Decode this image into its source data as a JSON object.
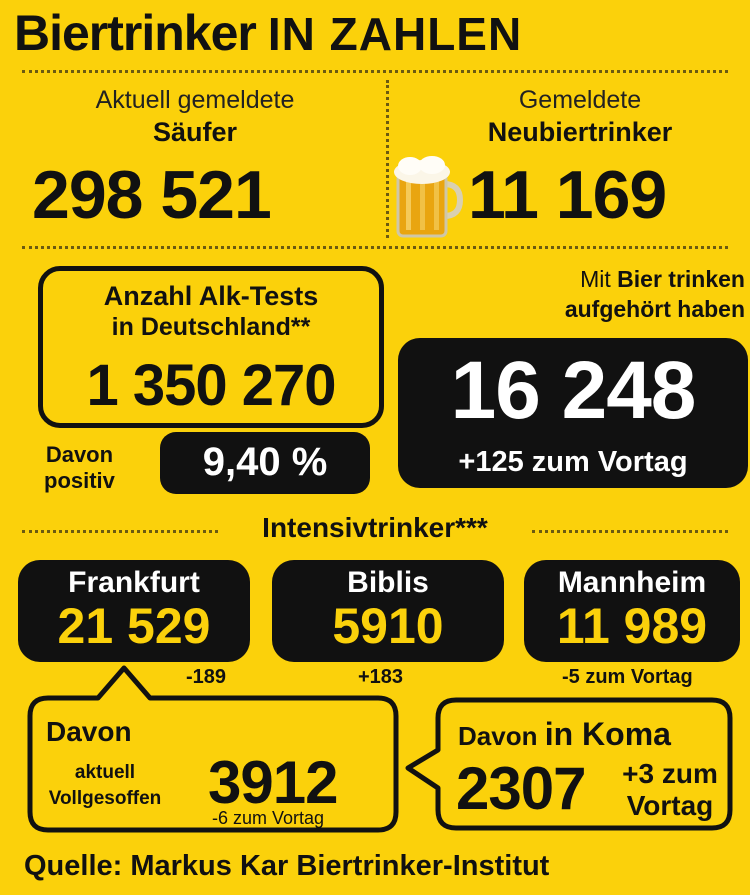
{
  "header": {
    "title_part1": "Biertrinker",
    "title_part2": "IN ZAHLEN"
  },
  "top_left": {
    "label_line1": "Aktuell gemeldete",
    "label_line2": "Säufer",
    "value": "298 521"
  },
  "top_right": {
    "label_line1": "Gemeldete",
    "label_line2": "Neubiertrinker",
    "value": "11 169"
  },
  "tests": {
    "label_line1": "Anzahl Alk-Tests",
    "label_line2": "in Deutschland**",
    "value": "1 350 270",
    "positive_label_line1": "Davon",
    "positive_label_line2": "positiv",
    "positive_value": "9,40 %"
  },
  "quit": {
    "label_prefix": "Mit",
    "label_bold1": "Bier trinken",
    "label_bold2": "aufgehört haben",
    "value": "16 248",
    "delta": "+125 zum Vortag"
  },
  "intensiv": {
    "heading": "Intensivtrinker***",
    "cities": [
      {
        "name": "Frankfurt",
        "value": "21 529",
        "delta": "-189"
      },
      {
        "name": "Biblis",
        "value": "5910",
        "delta": "+183"
      },
      {
        "name": "Mannheim",
        "value": "11 989",
        "delta": "-5 zum Vortag"
      }
    ]
  },
  "vollgesoffen": {
    "label_line1": "Davon",
    "label_line2": "aktuell",
    "label_line3": "Vollgesoffen",
    "value": "3912",
    "delta": "-6 zum Vortag"
  },
  "koma": {
    "label_prefix": "Davon",
    "label_bold": "in Koma",
    "value": "2307",
    "delta_line1": "+3 zum",
    "delta_line2": "Vortag"
  },
  "footer": {
    "source": "Quelle: Markus Kar Biertrinker-Institut"
  },
  "colors": {
    "background": "#fbd10b",
    "dark": "#111111"
  },
  "icons": [
    "beer-mug-icon"
  ]
}
